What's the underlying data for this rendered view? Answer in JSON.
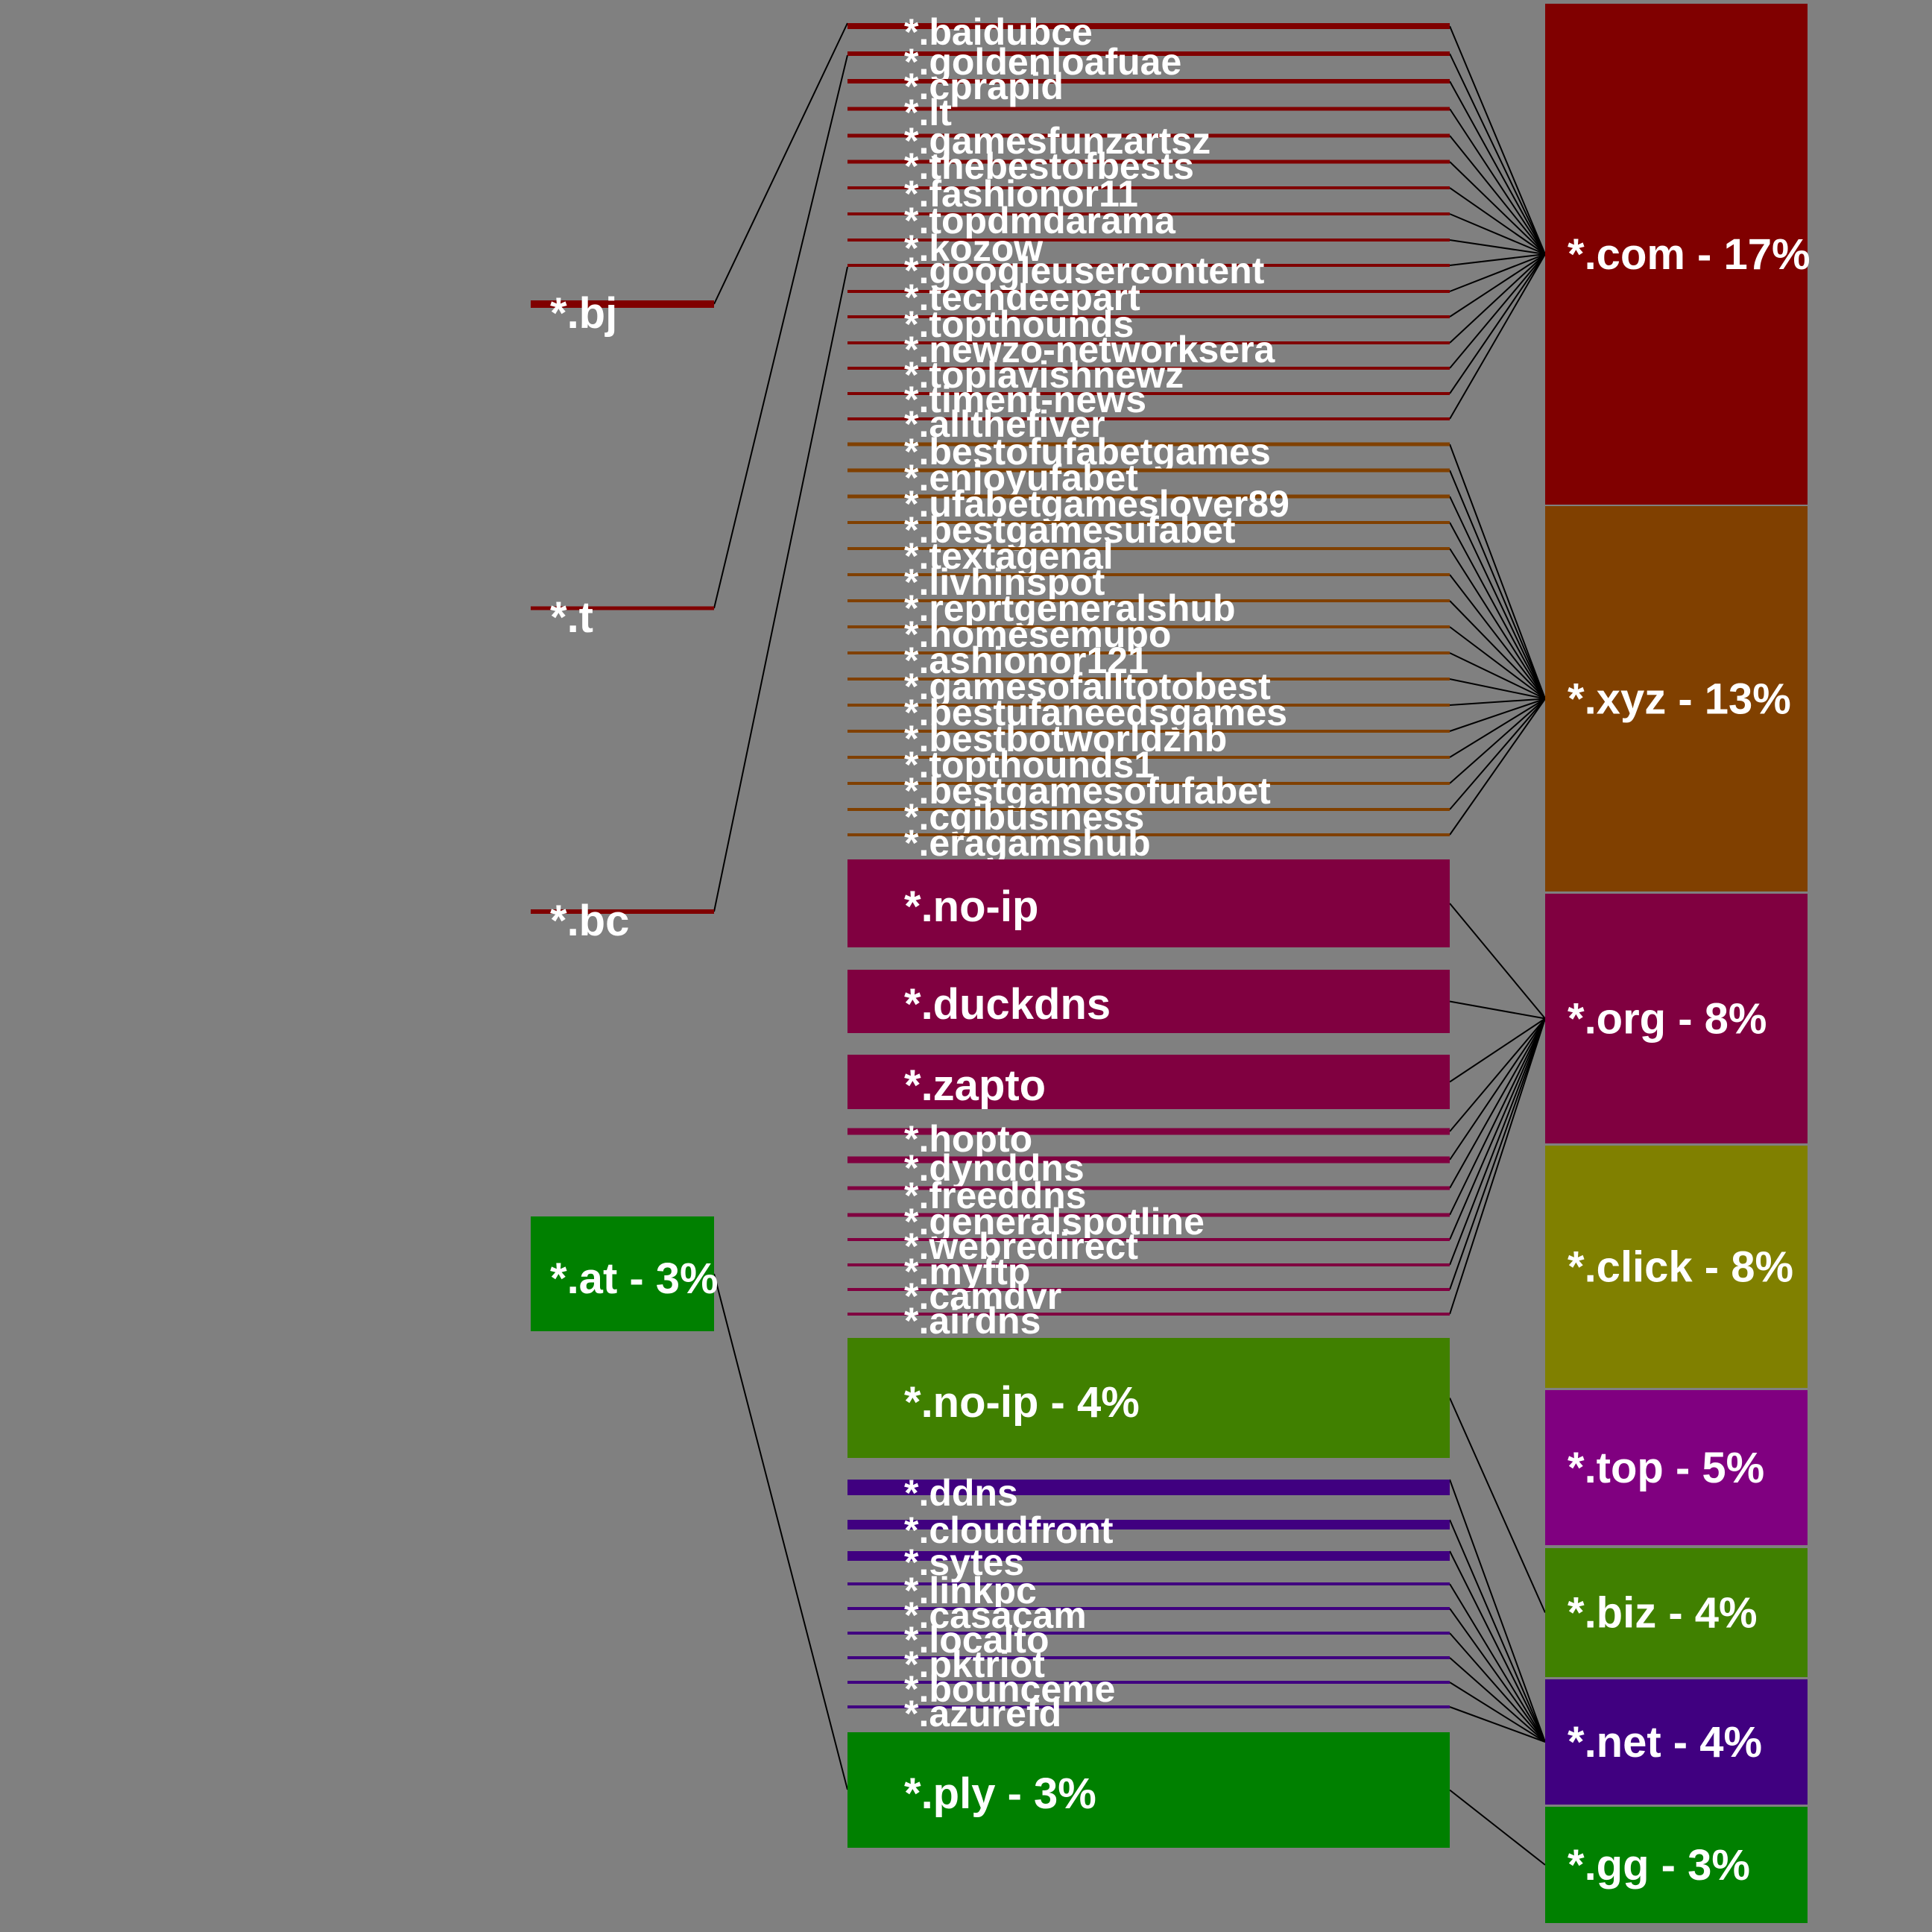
{
  "colors": {
    "background": "#808080",
    "com": "#800000",
    "xyz": "#804000",
    "org": "#800040",
    "click": "#808000",
    "top": "#800080",
    "biz": "#408000",
    "net": "#400080",
    "gg": "#008000",
    "text": "#ffffff",
    "connector": "#000000"
  },
  "right_nodes": [
    {
      "id": "com",
      "label": "*.com - 17%"
    },
    {
      "id": "xyz",
      "label": "*.xyz - 13%"
    },
    {
      "id": "org",
      "label": "*.org - 8%"
    },
    {
      "id": "click",
      "label": "*.click - 8%"
    },
    {
      "id": "top",
      "label": "*.top - 5%"
    },
    {
      "id": "biz",
      "label": "*.biz - 4%"
    },
    {
      "id": "net",
      "label": "*.net - 4%"
    },
    {
      "id": "gg",
      "label": "*.gg - 3%"
    }
  ],
  "left_nodes": [
    {
      "id": "bj",
      "label": "*.bj"
    },
    {
      "id": "t",
      "label": "*.t"
    },
    {
      "id": "bc",
      "label": "*.bc"
    },
    {
      "id": "at",
      "label": "*.at - 3%"
    }
  ],
  "middle_nodes": [
    {
      "label": "*.baidubce",
      "group": "com"
    },
    {
      "label": "*.goldenloafuae",
      "group": "com"
    },
    {
      "label": "*.cprapid",
      "group": "com"
    },
    {
      "label": "*.lt",
      "group": "com"
    },
    {
      "label": "*.gamesfunzartsz",
      "group": "com"
    },
    {
      "label": "*.thebestofbests",
      "group": "com"
    },
    {
      "label": "*.fashionor11",
      "group": "com"
    },
    {
      "label": "*.topdmdarama",
      "group": "com"
    },
    {
      "label": "*.kozow",
      "group": "com"
    },
    {
      "label": "*.googleusercontent",
      "group": "com"
    },
    {
      "label": "*.techdeepart",
      "group": "com"
    },
    {
      "label": "*.topthounds",
      "group": "com"
    },
    {
      "label": "*.newzo-networksera",
      "group": "com"
    },
    {
      "label": "*.toplavishnewz",
      "group": "com"
    },
    {
      "label": "*.timent-news",
      "group": "com"
    },
    {
      "label": "*.allthefiver",
      "group": "com"
    },
    {
      "label": "*.bestofufabetgames",
      "group": "xyz"
    },
    {
      "label": "*.enjoyufabet",
      "group": "xyz"
    },
    {
      "label": "*.ufabetgameslover89",
      "group": "xyz"
    },
    {
      "label": "*.bestgamesufabet",
      "group": "xyz"
    },
    {
      "label": "*.textagenal",
      "group": "xyz"
    },
    {
      "label": "*.livhinspot",
      "group": "xyz"
    },
    {
      "label": "*.reprtgeneralshub",
      "group": "xyz"
    },
    {
      "label": "*.homesemupo",
      "group": "xyz"
    },
    {
      "label": "*.ashionor121",
      "group": "xyz"
    },
    {
      "label": "*.gamesofalltotobest",
      "group": "xyz"
    },
    {
      "label": "*.bestufaneedsgames",
      "group": "xyz"
    },
    {
      "label": "*.bestbotworldzhb",
      "group": "xyz"
    },
    {
      "label": "*.topthounds1",
      "group": "xyz"
    },
    {
      "label": "*.bestgamesofufabet",
      "group": "xyz"
    },
    {
      "label": "*.cgibusiness",
      "group": "xyz"
    },
    {
      "label": "*.eragamshub",
      "group": "xyz"
    },
    {
      "label": "*.no-ip",
      "group": "org",
      "block": true
    },
    {
      "label": "*.duckdns",
      "group": "org",
      "block": true
    },
    {
      "label": "*.zapto",
      "group": "org",
      "block": true
    },
    {
      "label": "*.hopto",
      "group": "org"
    },
    {
      "label": "*.dynddns",
      "group": "org"
    },
    {
      "label": "*.freeddns",
      "group": "org"
    },
    {
      "label": "*.generalspotline",
      "group": "org"
    },
    {
      "label": "*.webredirect",
      "group": "org"
    },
    {
      "label": "*.myftp",
      "group": "org"
    },
    {
      "label": "*.camdvr",
      "group": "org"
    },
    {
      "label": "*.airdns",
      "group": "org"
    },
    {
      "label": "*.no-ip - 4%",
      "group": "biz",
      "block": true
    },
    {
      "label": "*.ddns",
      "group": "net"
    },
    {
      "label": "*.cloudfront",
      "group": "net"
    },
    {
      "label": "*.sytes",
      "group": "net"
    },
    {
      "label": "*.linkpc",
      "group": "net"
    },
    {
      "label": "*.casacam",
      "group": "net"
    },
    {
      "label": "*.localto",
      "group": "net"
    },
    {
      "label": "*.pktriot",
      "group": "net"
    },
    {
      "label": "*.bounceme",
      "group": "net"
    },
    {
      "label": "*.azurefd",
      "group": "net"
    },
    {
      "label": "*.ply - 3%",
      "group": "gg",
      "block": true
    }
  ]
}
